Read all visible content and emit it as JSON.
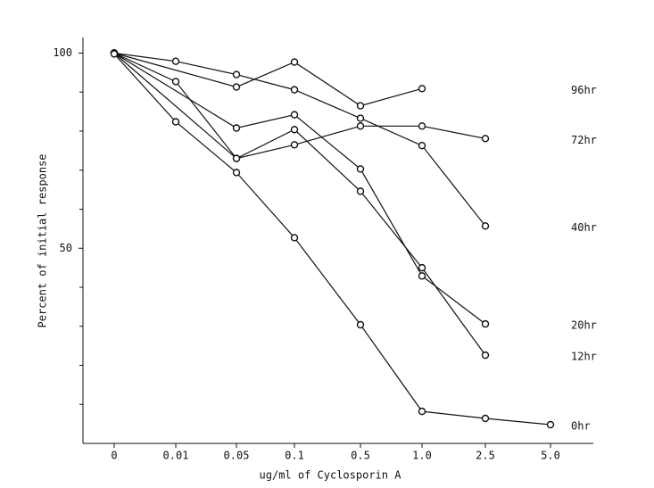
{
  "chart_data": {
    "type": "line",
    "x_label": "ug/ml of Cyclosporin A",
    "y_label": "Percent of initial response",
    "categories": [
      "0",
      "0.01",
      "0.05",
      "0.1",
      "0.5",
      "1.0",
      "2.5",
      "5.0"
    ],
    "ylim": [
      0,
      104
    ],
    "yticks": [
      50,
      100
    ],
    "yminor": [
      10,
      20,
      30,
      40,
      60,
      70,
      80,
      90
    ],
    "color": "#111111",
    "series": [
      {
        "name": "96hr",
        "values": [
          100,
          null,
          91.3,
          97.7,
          86.5,
          90.9,
          null,
          null
        ]
      },
      {
        "name": "72hr",
        "values": [
          100,
          null,
          73,
          76.5,
          81.3,
          81.3,
          78.1,
          null
        ]
      },
      {
        "name": "40hr",
        "values": [
          100,
          97.9,
          94.5,
          90.6,
          83.3,
          76.3,
          55.7,
          null
        ]
      },
      {
        "name": "20hr",
        "values": [
          100,
          null,
          80.8,
          84.2,
          70.3,
          42.9,
          30.6,
          null
        ]
      },
      {
        "name": "12hr",
        "values": [
          100,
          92.7,
          73,
          80.4,
          64.6,
          45,
          22.6,
          null
        ]
      },
      {
        "name": "0hr",
        "values": [
          99.8,
          82.4,
          69.4,
          52.7,
          30.4,
          8.2,
          6.4,
          4.8
        ]
      }
    ]
  }
}
